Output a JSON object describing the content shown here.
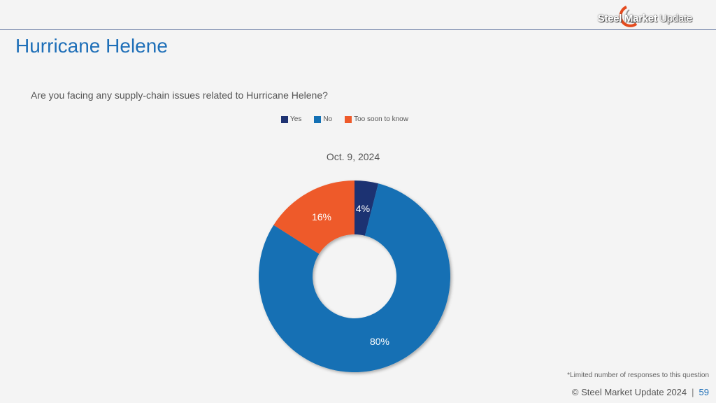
{
  "brand": {
    "logo_bold": "Steel Market",
    "logo_light": "Update"
  },
  "header": {
    "title": "Hurricane Helene"
  },
  "question": "Are you facing any supply-chain issues related to Hurricane Helene?",
  "chart_data": {
    "type": "pie",
    "variant": "donut",
    "title": "Oct. 9, 2024",
    "legend_position": "top",
    "categories": [
      "Yes",
      "No",
      "Too soon to know"
    ],
    "values": [
      4,
      80,
      16
    ],
    "labels": [
      "4%",
      "80%",
      "16%"
    ],
    "colors": [
      "#1f3372",
      "#1370b4",
      "#ee5a2a"
    ]
  },
  "footnote": "*Limited number of responses to this question",
  "footer": {
    "copyright": "© Steel Market Update 2024",
    "separator": "|",
    "page": "59"
  }
}
